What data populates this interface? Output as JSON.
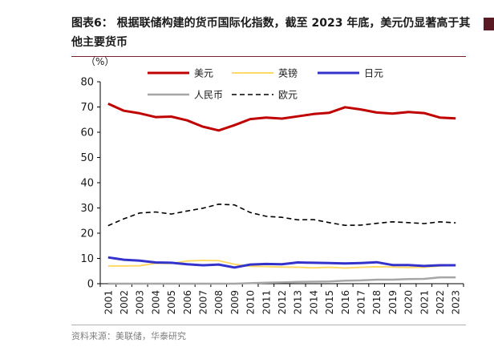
{
  "header": {
    "title": "图表6：  根据联储构建的货币国际化指数，截至 2023 年底，美元仍显著高于其他主要货币"
  },
  "footer": {
    "source": "资料来源：美联储，华泰研究"
  },
  "chart_data": {
    "type": "line",
    "title": "",
    "ylabel": "（%）",
    "xlabel": "",
    "ylim": [
      0,
      80
    ],
    "yticks": [
      0,
      10,
      20,
      30,
      40,
      50,
      60,
      70,
      80
    ],
    "x": [
      "2001",
      "2002",
      "2003",
      "2004",
      "2005",
      "2006",
      "2007",
      "2008",
      "2009",
      "2010",
      "2011",
      "2012",
      "2013",
      "2014",
      "2015",
      "2016",
      "2017",
      "2018",
      "2019",
      "2020",
      "2021",
      "2022",
      "2023"
    ],
    "legend_position": "top",
    "grid": false,
    "series": [
      {
        "name": "美元",
        "color": "#c00000",
        "dash": "solid",
        "width": 3,
        "values": [
          71.3,
          68.5,
          67.5,
          66.0,
          66.2,
          64.7,
          62.2,
          60.7,
          62.8,
          65.2,
          65.8,
          65.4,
          66.3,
          67.2,
          67.7,
          69.9,
          69.0,
          67.8,
          67.4,
          68.0,
          67.6,
          65.8,
          65.5
        ]
      },
      {
        "name": "英镑",
        "color": "#ffd966",
        "dash": "solid",
        "width": 2,
        "values": [
          7.0,
          7.0,
          7.1,
          8.1,
          8.0,
          9.0,
          9.2,
          9.1,
          7.7,
          6.9,
          6.8,
          6.6,
          6.5,
          6.3,
          6.5,
          6.2,
          6.5,
          6.7,
          6.6,
          6.4,
          6.5,
          7.0,
          7.3
        ]
      },
      {
        "name": "日元",
        "color": "#3333cc",
        "dash": "solid",
        "width": 3,
        "values": [
          10.4,
          9.5,
          9.1,
          8.4,
          8.3,
          7.7,
          7.3,
          7.6,
          6.4,
          7.6,
          7.8,
          7.7,
          8.4,
          8.3,
          8.2,
          8.0,
          8.2,
          8.5,
          7.4,
          7.4,
          7.0,
          7.3,
          7.3
        ]
      },
      {
        "name": "人民币",
        "color": "#a6a6a6",
        "dash": "solid",
        "width": 2.5,
        "values": [
          0.0,
          0.0,
          0.0,
          0.0,
          0.0,
          0.0,
          0.0,
          0.0,
          0.0,
          0.2,
          0.4,
          0.5,
          0.7,
          0.8,
          0.9,
          1.2,
          1.3,
          1.6,
          1.6,
          1.8,
          1.9,
          2.5,
          2.5
        ]
      },
      {
        "name": "欧元",
        "color": "#000000",
        "dash": "dashed",
        "width": 1.6,
        "values": [
          23.0,
          25.7,
          28.0,
          28.4,
          27.6,
          28.8,
          29.9,
          31.5,
          31.2,
          28.2,
          26.7,
          26.3,
          25.3,
          25.4,
          24.2,
          23.1,
          23.2,
          23.9,
          24.5,
          24.2,
          23.8,
          24.5,
          24.1
        ]
      }
    ]
  }
}
